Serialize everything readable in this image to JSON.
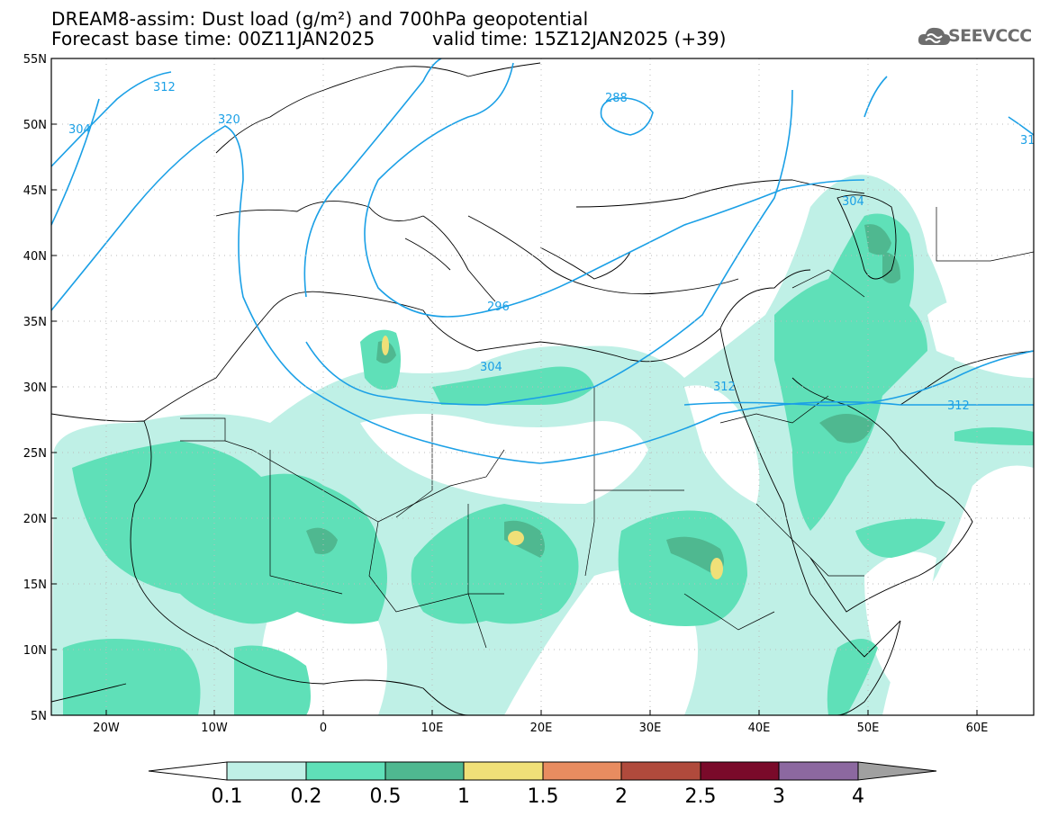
{
  "header": {
    "title_line1": "DREAM8-assim: Dust load (g/m²) and 700hPa geopotential",
    "title_line2": "Forecast base time: 00Z11JAN2025",
    "valid_time": "valid time: 15Z12JAN2025 (+39)"
  },
  "logo": {
    "text": "SEEVCCC",
    "icon": "cloud-logo-icon"
  },
  "map": {
    "lon_range": [
      -25,
      65
    ],
    "lat_range": [
      5,
      55
    ],
    "lat_labels": [
      "55N",
      "50N",
      "45N",
      "40N",
      "35N",
      "30N",
      "25N",
      "20N",
      "15N",
      "10N",
      "5N"
    ],
    "lon_labels": [
      "20W",
      "10W",
      "0",
      "10E",
      "20E",
      "30E",
      "40E",
      "50E",
      "60E"
    ],
    "contour_labels": [
      "312",
      "304",
      "320",
      "288",
      "296",
      "304",
      "312",
      "312",
      "304",
      "31"
    ],
    "contour_color": "#1ba0e6"
  },
  "colorbar": {
    "labels": [
      "0.1",
      "0.2",
      "0.5",
      "1",
      "1.5",
      "2",
      "2.5",
      "3",
      "4"
    ],
    "colors": [
      "#ffffff",
      "#bff0e6",
      "#5fe0b8",
      "#4fb890",
      "#f0e078",
      "#e88c60",
      "#b04a3c",
      "#7a0a2a",
      "#8c68a0",
      "#a0a0a0"
    ]
  }
}
